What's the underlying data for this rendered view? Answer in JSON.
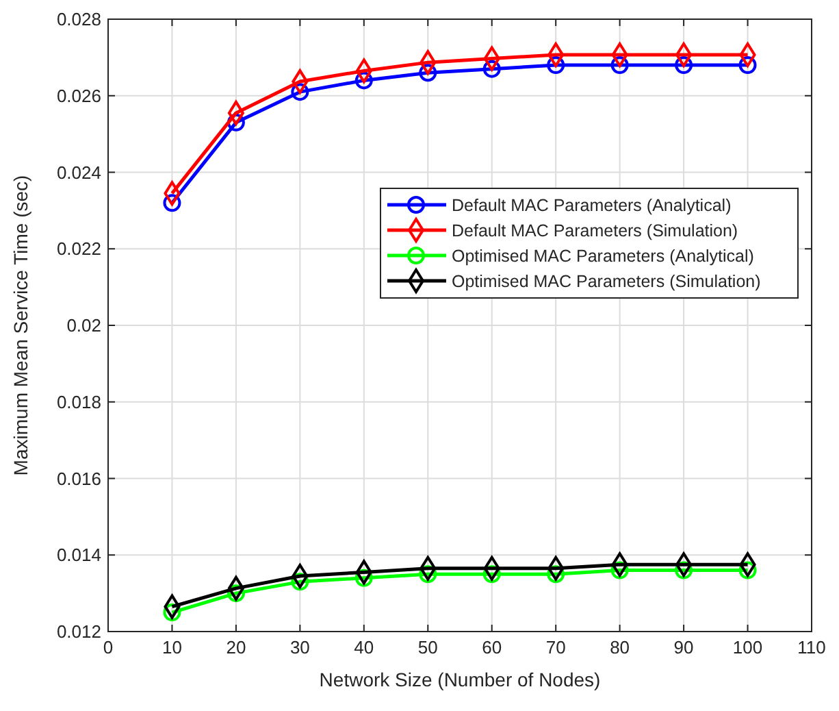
{
  "chart_data": {
    "type": "line",
    "xlabel": "Network Size (Number of Nodes)",
    "ylabel": "Maximum Mean Service Time (sec)",
    "x": [
      10,
      20,
      30,
      40,
      50,
      60,
      70,
      80,
      90,
      100
    ],
    "xlim": [
      0,
      110
    ],
    "xticks": [
      0,
      10,
      20,
      30,
      40,
      50,
      60,
      70,
      80,
      90,
      100,
      110
    ],
    "ylim": [
      0.012,
      0.028
    ],
    "yticks": [
      0.012,
      0.014,
      0.016,
      0.018,
      0.02,
      0.022,
      0.024,
      0.026,
      0.028
    ],
    "grid": true,
    "legend": "right",
    "series": [
      {
        "name": "Default MAC Parameters (Analytical)",
        "color": "#0000ff",
        "marker": "circle",
        "values": [
          0.0232,
          0.0253,
          0.0261,
          0.0264,
          0.0266,
          0.0267,
          0.0268,
          0.0268,
          0.0268,
          0.0268
        ]
      },
      {
        "name": "Default MAC Parameters (Simulation)",
        "color": "#ff0000",
        "marker": "diamond",
        "values": [
          0.02345,
          0.02555,
          0.02637,
          0.02665,
          0.02687,
          0.02697,
          0.02707,
          0.02707,
          0.02707,
          0.02707
        ]
      },
      {
        "name": "Optimised MAC Parameters (Analytical)",
        "color": "#00ff00",
        "marker": "circle",
        "values": [
          0.0125,
          0.013,
          0.0133,
          0.0134,
          0.0135,
          0.0135,
          0.0135,
          0.0136,
          0.0136,
          0.0136
        ]
      },
      {
        "name": "Optimised MAC Parameters (Simulation)",
        "color": "#000000",
        "marker": "diamond",
        "values": [
          0.01265,
          0.01313,
          0.01345,
          0.01355,
          0.01365,
          0.01365,
          0.01365,
          0.01375,
          0.01375,
          0.01375
        ]
      }
    ]
  }
}
